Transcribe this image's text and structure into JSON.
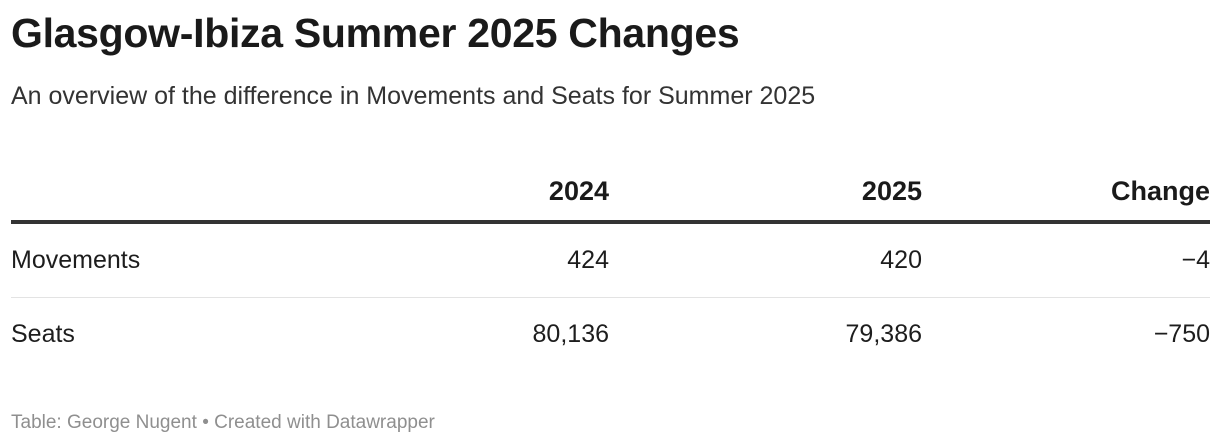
{
  "title": "Glasgow-Ibiza Summer 2025 Changes",
  "subtitle": "An overview of the difference in Movements and Seats for Summer 2025",
  "chart_data": {
    "type": "table",
    "columns": [
      "",
      "2024",
      "2025",
      "Change"
    ],
    "rows": [
      {
        "label": "Movements",
        "values": [
          "424",
          "420",
          "−4"
        ]
      },
      {
        "label": "Seats",
        "values": [
          "80,136",
          "79,386",
          "−750"
        ]
      }
    ]
  },
  "footer": {
    "source": "Table: George Nugent",
    "separator": "•",
    "credit": "Created with Datawrapper"
  }
}
